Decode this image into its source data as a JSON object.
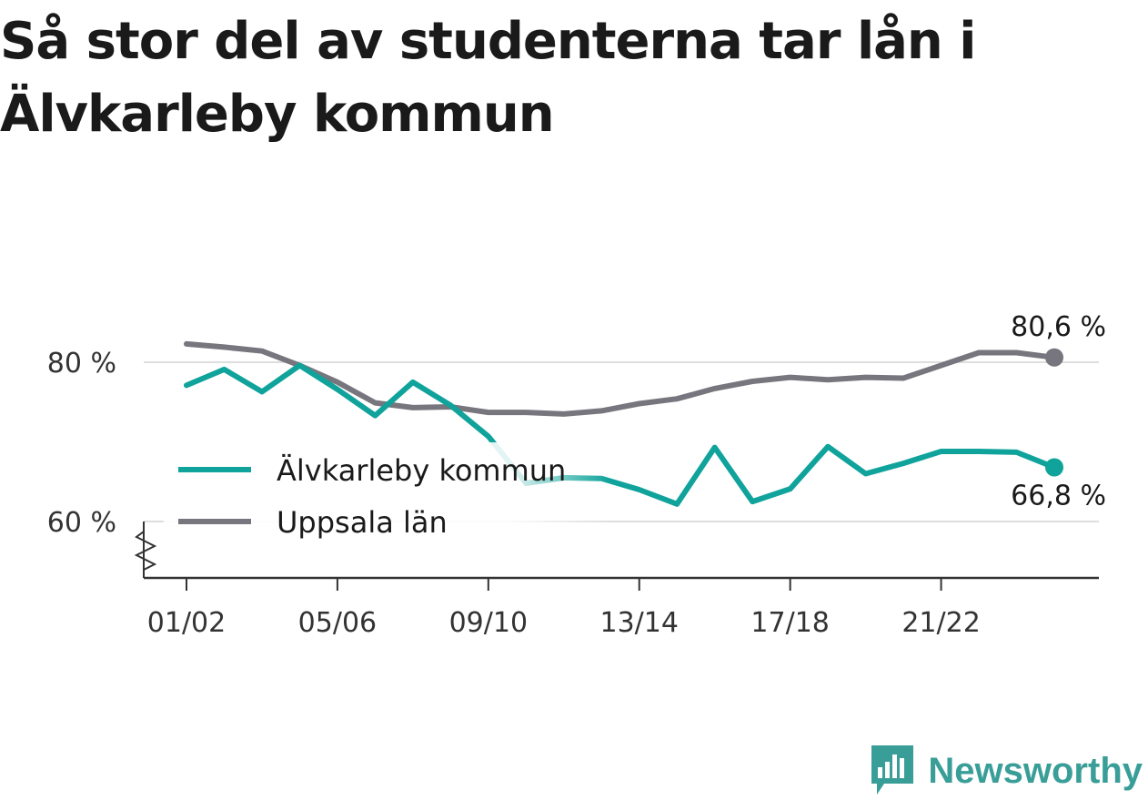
{
  "title": "Så stor del av studenterna tar lån i Älvkarleby kommun",
  "brand": {
    "name": "Newsworthy",
    "logo_icon": "newsworthy-logo-icon",
    "color": "#3a9e98"
  },
  "chart_data": {
    "type": "line",
    "title": "Så stor del av studenterna tar lån i Älvkarleby kommun",
    "x": [
      "01/02",
      "02/03",
      "03/04",
      "04/05",
      "05/06",
      "06/07",
      "07/08",
      "08/09",
      "09/10",
      "10/11",
      "11/12",
      "12/13",
      "13/14",
      "14/15",
      "15/16",
      "16/17",
      "17/18",
      "18/19",
      "19/20",
      "20/21",
      "21/22",
      "22/23",
      "23/24",
      "24/25"
    ],
    "x_tick_labels": [
      "01/02",
      "05/06",
      "09/10",
      "13/14",
      "17/18",
      "21/22"
    ],
    "y_tick_labels": [
      "60 %",
      "80 %"
    ],
    "y_ticks": [
      60,
      80
    ],
    "ylim": [
      53,
      95
    ],
    "y_axis_break": true,
    "grid": "horizontal",
    "legend_position": "middle-left",
    "series": [
      {
        "name": "Älvkarleby kommun",
        "color": "#0fa39b",
        "values": [
          77.1,
          79.1,
          76.3,
          79.6,
          76.6,
          73.3,
          77.5,
          74.6,
          70.7,
          64.8,
          65.5,
          65.4,
          64.0,
          62.2,
          69.3,
          62.5,
          64.1,
          69.4,
          66.0,
          67.3,
          68.8,
          68.8,
          68.7,
          66.8
        ],
        "end_label": "66,8 %"
      },
      {
        "name": "Uppsala län",
        "color": "#77757d",
        "values": [
          82.3,
          81.9,
          81.4,
          79.6,
          77.5,
          74.9,
          74.3,
          74.4,
          73.7,
          73.7,
          73.5,
          73.9,
          74.8,
          75.4,
          76.7,
          77.6,
          78.1,
          77.8,
          78.1,
          78.0,
          79.6,
          81.2,
          81.2,
          80.6
        ],
        "end_label": "80,6 %"
      }
    ]
  }
}
